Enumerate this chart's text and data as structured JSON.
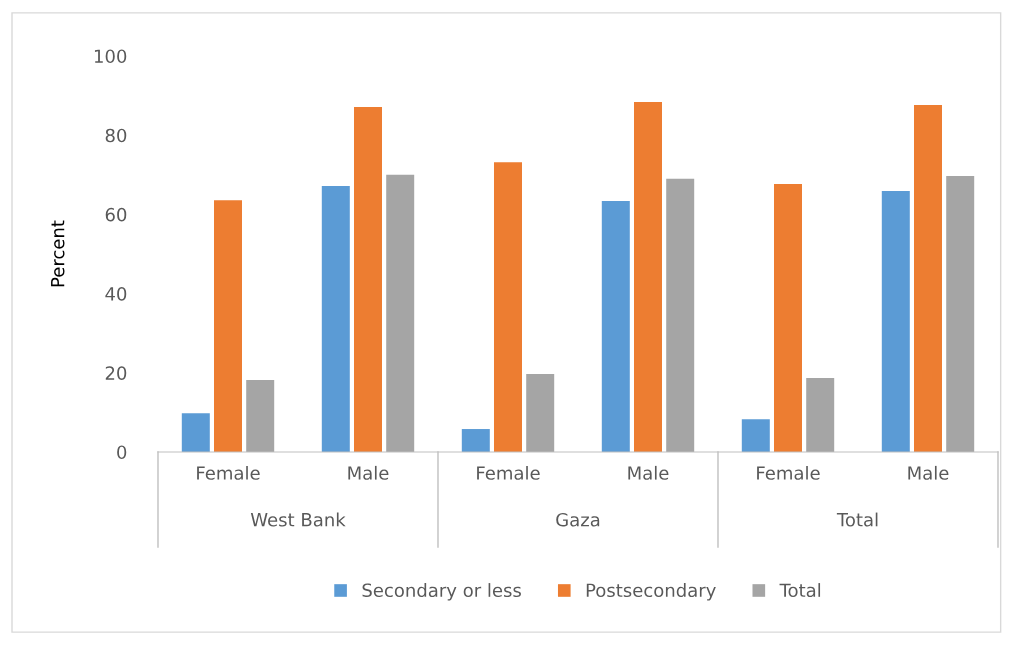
{
  "chart_data": {
    "type": "bar",
    "ylabel": "Percent",
    "categories": [
      "Female",
      "Male",
      "Female",
      "Male",
      "Female",
      "Male"
    ],
    "annotations": [
      "West Bank",
      "Gaza",
      "Total"
    ],
    "series": [
      {
        "name": "Secondary or less",
        "color": "#5b9bd5",
        "values": [
          9.8,
          67.2,
          5.8,
          63.4,
          8.3,
          65.9
        ]
      },
      {
        "name": "Postsecondary",
        "color": "#ed7d31",
        "values": [
          63.6,
          87.1,
          73.2,
          88.4,
          67.7,
          87.6
        ]
      },
      {
        "name": "Total",
        "color": "#a5a5a5",
        "values": [
          18.2,
          70,
          19.7,
          69,
          18.7,
          69.7
        ]
      }
    ],
    "ylim": [
      0,
      100
    ],
    "yticks": [
      0,
      20,
      40,
      60,
      80,
      100
    ],
    "grid": false,
    "legend": "bottom"
  }
}
